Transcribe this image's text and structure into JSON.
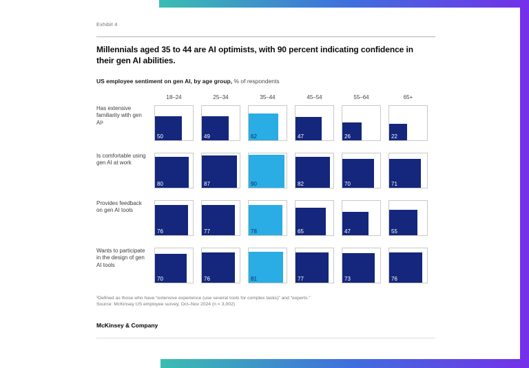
{
  "exhibit_label": "Exhibit 4",
  "title": "Millennials aged 35 to 44 are AI optimists, with 90 percent indicating confidence in their gen AI abilities.",
  "subtitle_bold": "US employee sentiment on gen AI, by age group,",
  "subtitle_regular": "% of respondents",
  "footnote": "¹Defined as those who have “extensive experience (use several tools for complex tasks)” and “experts.”",
  "source": "Source: McKinsey US employee survey, Oct–Nov 2024 (n = 3,002)",
  "logo": "McKinsey & Company",
  "colors": {
    "navy": "#14277d",
    "cyan": "#29ade4",
    "box_border": "#c8c8c8",
    "label_on_navy": "#ffffff",
    "label_on_cyan": "#0d2a6b",
    "frame_gradient_start": "#3bbdb1",
    "frame_gradient_mid": "#3f6ede",
    "frame_gradient_end": "#7430ea"
  },
  "chart_data": {
    "type": "heatmap",
    "subtype": "proportional-square-grid",
    "title": "US employee sentiment on gen AI, by age group",
    "unit": "% of respondents",
    "categories": [
      "18–24",
      "25–34",
      "35–44",
      "45–54",
      "55–64",
      "65+"
    ],
    "highlight_category": "35–44",
    "series": [
      {
        "name": "Has extensive familiarity with gen AI¹",
        "values": [
          50,
          49,
          62,
          47,
          26,
          22
        ]
      },
      {
        "name": "Is comfortable using gen AI at work",
        "values": [
          80,
          87,
          90,
          82,
          70,
          71
        ]
      },
      {
        "name": "Provides feedback on gen AI tools",
        "values": [
          76,
          77,
          78,
          65,
          47,
          55
        ]
      },
      {
        "name": "Wants to participate in the design of gen AI tools",
        "values": [
          70,
          76,
          81,
          77,
          73,
          76
        ]
      }
    ],
    "value_range": [
      0,
      100
    ],
    "legend_position": "none",
    "grid": false
  }
}
